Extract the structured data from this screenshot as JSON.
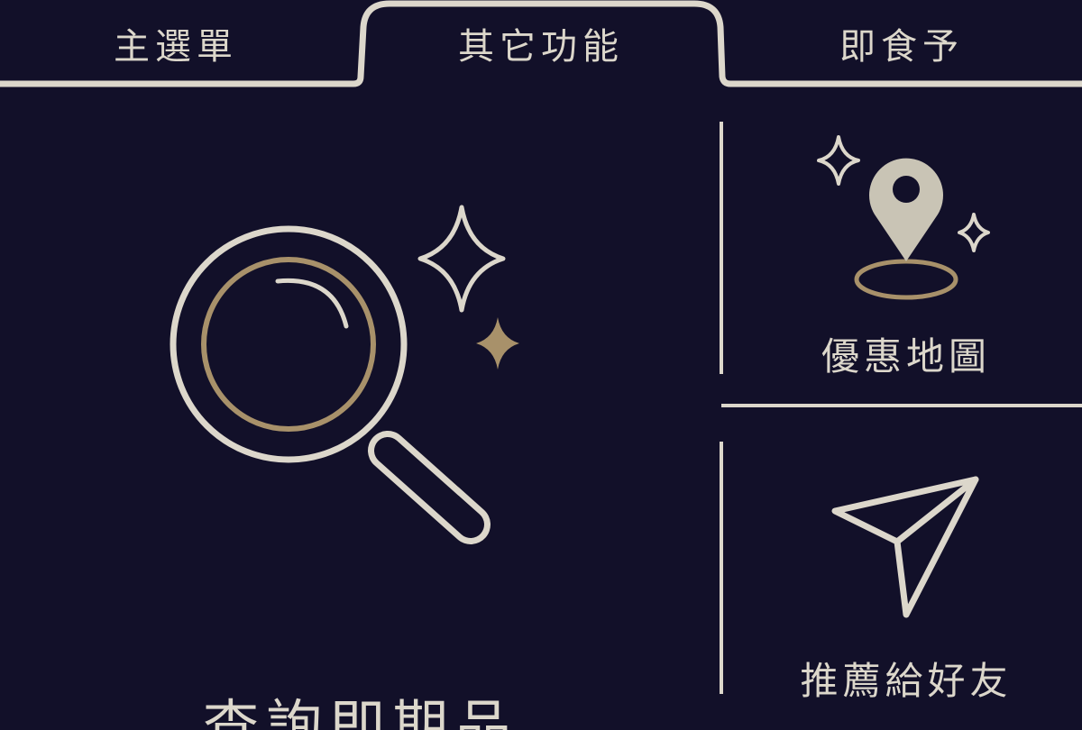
{
  "tabs": [
    {
      "label": "主選單",
      "active": false
    },
    {
      "label": "其它功能",
      "active": true
    },
    {
      "label": "即食予",
      "active": false
    }
  ],
  "features": {
    "search": {
      "label": "查詢即期品",
      "icon": "magnifier-sparkle-icon"
    },
    "map": {
      "label": "優惠地圖",
      "icon": "location-pin-icon"
    },
    "share": {
      "label": "推薦給好友",
      "icon": "paper-plane-icon"
    }
  },
  "colors": {
    "background": "#121029",
    "line": "#dcd7cb",
    "accent_gold": "#a8916a"
  }
}
